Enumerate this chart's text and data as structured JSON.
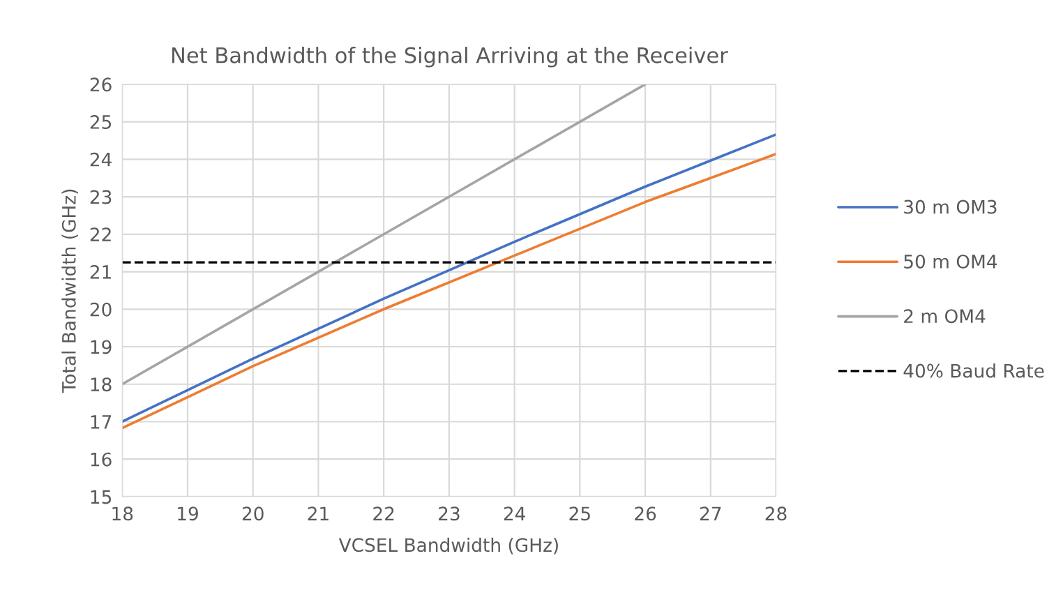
{
  "chart_data": {
    "type": "line",
    "title": "Net Bandwidth of the Signal Arriving at the Receiver",
    "xlabel": "VCSEL Bandwidth (GHz)",
    "ylabel": "Total Bandwidth (GHz)",
    "x": [
      18,
      20,
      22,
      24,
      26,
      28
    ],
    "series": [
      {
        "name": "30 m OM3",
        "color": "#4472c4",
        "values": [
          17.0,
          18.68,
          20.28,
          21.8,
          23.27,
          24.66
        ]
      },
      {
        "name": "50 m OM4",
        "color": "#ed7d31",
        "values": [
          16.83,
          18.48,
          20.0,
          21.43,
          22.86,
          24.14
        ]
      },
      {
        "name": "2 m OM4",
        "color": "#a5a5a5",
        "x": [
          18,
          26
        ],
        "values": [
          18,
          26
        ]
      }
    ],
    "ref_lines": [
      {
        "axis": "y",
        "value": 21.25,
        "label": "40% Baud Rate",
        "color": "#000000",
        "line_style": "dashed"
      }
    ],
    "xlim": [
      18,
      28
    ],
    "xticks": [
      18,
      19,
      20,
      21,
      22,
      23,
      24,
      25,
      26,
      27,
      28
    ],
    "ylim": [
      15,
      26
    ],
    "yticks": [
      15,
      16,
      17,
      18,
      19,
      20,
      21,
      22,
      23,
      24,
      25,
      26
    ],
    "grid": true,
    "legend": "right",
    "marker": "none",
    "line_style": "solid"
  }
}
